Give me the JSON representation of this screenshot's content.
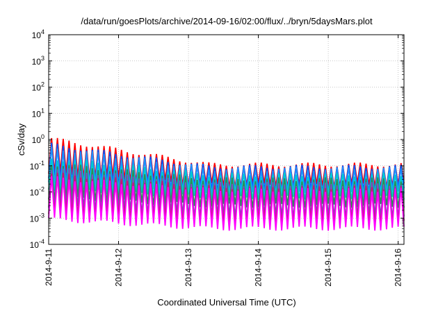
{
  "chart_data": {
    "type": "line",
    "title": "/data/run/goesPlots/archive/2014-09-16/02:00/flux/../bryn/5daysMars.plot",
    "xlabel": "Coordinated Universal Time (UTC)",
    "ylabel": "cSv/day",
    "y_scale": "log",
    "ylim": [
      0.0001,
      10000
    ],
    "xlim": [
      "2014-09-11",
      "2014-09-16 02:00"
    ],
    "grid": true,
    "legend": "none",
    "x_ticks": [
      "2014-9-11",
      "2014-9-12",
      "2014-9-13",
      "2014-9-14",
      "2014-9-15",
      "2014-9-16"
    ],
    "y_ticks": [
      {
        "base": "10",
        "exp": "-4",
        "value": 0.0001
      },
      {
        "base": "10",
        "exp": "-3",
        "value": 0.001
      },
      {
        "base": "10",
        "exp": "-2",
        "value": 0.01
      },
      {
        "base": "10",
        "exp": "-1",
        "value": 0.1
      },
      {
        "base": "10",
        "exp": "0",
        "value": 1
      },
      {
        "base": "10",
        "exp": "1",
        "value": 10
      },
      {
        "base": "10",
        "exp": "2",
        "value": 100
      },
      {
        "base": "10",
        "exp": "3",
        "value": 1000
      },
      {
        "base": "10",
        "exp": "4",
        "value": 10000
      }
    ],
    "oscillation_period_hours": 2,
    "series": [
      {
        "color": "#ff0000",
        "peak_start": 1.1,
        "peak_end": 0.11,
        "trough_start": 0.05,
        "trough_end": 0.018
      },
      {
        "color": "#0055ff",
        "peak_start": 0.65,
        "peak_end": 0.09,
        "trough_start": 0.028,
        "trough_end": 0.012
      },
      {
        "color": "#1e90ff",
        "peak_start": 0.5,
        "peak_end": 0.075,
        "trough_start": 0.02,
        "trough_end": 0.009
      },
      {
        "color": "#00cccc",
        "peak_start": 0.2,
        "peak_end": 0.045,
        "trough_start": 0.012,
        "trough_end": 0.006
      },
      {
        "color": "#2e8b57",
        "peak_start": 0.12,
        "peak_end": 0.03,
        "trough_start": 0.006,
        "trough_end": 0.003
      },
      {
        "color": "#7b4fc9",
        "peak_start": 0.08,
        "peak_end": 0.02,
        "trough_start": 0.003,
        "trough_end": 0.0012
      },
      {
        "color": "#cc1177",
        "peak_start": 0.05,
        "peak_end": 0.015,
        "trough_start": 0.0015,
        "trough_end": 0.0007
      },
      {
        "color": "#ff00ff",
        "peak_start": 0.035,
        "peak_end": 0.012,
        "trough_start": 0.0009,
        "trough_end": 0.0004
      }
    ]
  }
}
